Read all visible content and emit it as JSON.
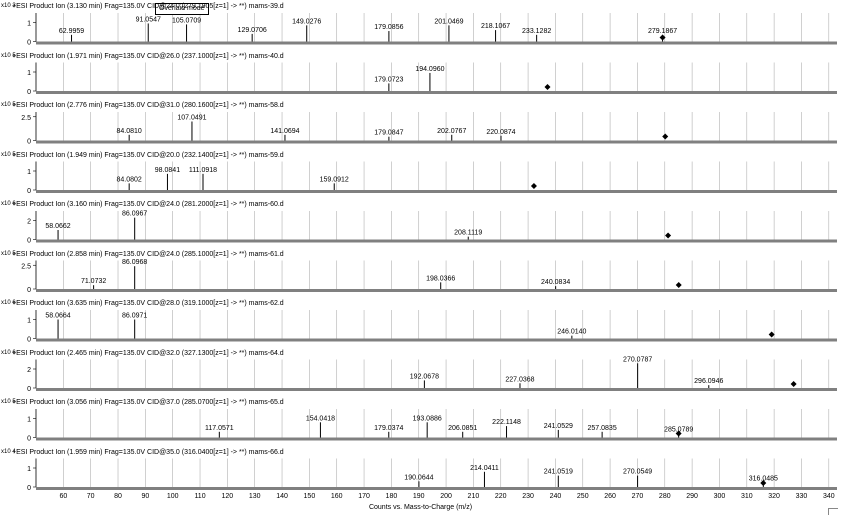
{
  "overlaid_mode_label": "Overlaid mode",
  "chart_data": [
    {
      "type": "bar",
      "header": "+ESI Product Ion (3.130 min) Frag=135.0V CID@24.0 (279.1905[z=1] -> **) mams-39.d",
      "scale": "x10 3",
      "yticks": [
        "1",
        "0"
      ],
      "ymax": 1.5,
      "peaks": [
        {
          "mz": 62.9959,
          "y": 0.35,
          "label": "62.9959"
        },
        {
          "mz": 91.0547,
          "y": 0.95,
          "label": "91.0547"
        },
        {
          "mz": 105.0709,
          "y": 0.9,
          "label": "105.0709"
        },
        {
          "mz": 129.0706,
          "y": 0.4,
          "label": "129.0706"
        },
        {
          "mz": 149.0276,
          "y": 0.85,
          "label": "149.0276"
        },
        {
          "mz": 179.0856,
          "y": 0.55,
          "label": "179.0856"
        },
        {
          "mz": 201.0469,
          "y": 0.85,
          "label": "201.0469"
        },
        {
          "mz": 218.1067,
          "y": 0.6,
          "label": "218.1067"
        },
        {
          "mz": 233.1282,
          "y": 0.35,
          "label": "233.1282"
        },
        {
          "mz": 279.1867,
          "y": 0.35,
          "label": "279.1867"
        }
      ],
      "precursor_mz": 279.19
    },
    {
      "type": "bar",
      "header": "+ESI Product Ion (1.971 min) Frag=135.0V CID@26.0 (237.1000[z=1] -> **) mams-40.d",
      "scale": "x10 5",
      "yticks": [
        "1",
        "0"
      ],
      "ymax": 1.5,
      "peaks": [
        {
          "mz": 179.0723,
          "y": 0.4,
          "label": "179.0723"
        },
        {
          "mz": 194.096,
          "y": 0.95,
          "label": "194.0960"
        }
      ],
      "precursor_mz": 237.1
    },
    {
      "type": "bar",
      "header": "+ESI Product Ion (2.776 min) Frag=135.0V CID@31.0 (280.1600[z=1] -> **) mams-58.d",
      "scale": "x10 5",
      "yticks": [
        "2.5",
        "0"
      ],
      "ymax": 3,
      "peaks": [
        {
          "mz": 84.081,
          "y": 0.6,
          "label": "84.0810"
        },
        {
          "mz": 107.0491,
          "y": 2.0,
          "label": "107.0491"
        },
        {
          "mz": 141.0694,
          "y": 0.6,
          "label": "141.0694"
        },
        {
          "mz": 179.0847,
          "y": 0.4,
          "label": "179.0847"
        },
        {
          "mz": 202.0767,
          "y": 0.6,
          "label": "202.0767"
        },
        {
          "mz": 220.0874,
          "y": 0.5,
          "label": "220.0874"
        }
      ],
      "precursor_mz": 280.16
    },
    {
      "type": "bar",
      "header": "+ESI Product Ion (1.949 min) Frag=135.0V CID@20.0 (232.1400[z=1] -> **) mams-59.d",
      "scale": "x10 5",
      "yticks": [
        "1",
        "0"
      ],
      "ymax": 1.5,
      "peaks": [
        {
          "mz": 84.0802,
          "y": 0.35,
          "label": "84.0802"
        },
        {
          "mz": 98.0841,
          "y": 0.85,
          "label": "98.0841"
        },
        {
          "mz": 111.0918,
          "y": 0.85,
          "label": "111.0918"
        },
        {
          "mz": 159.0912,
          "y": 0.35,
          "label": "159.0912"
        }
      ],
      "precursor_mz": 232.14
    },
    {
      "type": "bar",
      "header": "+ESI Product Ion (3.160 min) Frag=135.0V CID@24.0 (281.2000[z=1] -> **) mams-60.d",
      "scale": "x10 6",
      "yticks": [
        "2",
        "0"
      ],
      "ymax": 3,
      "peaks": [
        {
          "mz": 58.0662,
          "y": 1.0,
          "label": "58.0662"
        },
        {
          "mz": 86.0967,
          "y": 2.3,
          "label": "86.0967"
        },
        {
          "mz": 208.1119,
          "y": 0.3,
          "label": "208.1119"
        }
      ],
      "precursor_mz": 281.2
    },
    {
      "type": "bar",
      "header": "+ESI Product Ion (2.858 min) Frag=135.0V CID@24.0 (285.1000[z=1] -> **) mams-61.d",
      "scale": "x10 5",
      "yticks": [
        "2.5",
        "0"
      ],
      "ymax": 3,
      "peaks": [
        {
          "mz": 71.0732,
          "y": 0.4,
          "label": "71.0732"
        },
        {
          "mz": 86.0968,
          "y": 2.4,
          "label": "86.0968"
        },
        {
          "mz": 198.0366,
          "y": 0.7,
          "label": "198.0366"
        },
        {
          "mz": 240.0834,
          "y": 0.3,
          "label": "240.0834"
        }
      ],
      "precursor_mz": 285.1
    },
    {
      "type": "bar",
      "header": "+ESI Product Ion (3.635 min) Frag=135.0V CID@28.0 (319.1000[z=1] -> **) mams-62.d",
      "scale": "x10 6",
      "yticks": [
        "1",
        "0"
      ],
      "ymax": 1.5,
      "peaks": [
        {
          "mz": 58.0664,
          "y": 1.0,
          "label": "58.0664"
        },
        {
          "mz": 86.0971,
          "y": 1.0,
          "label": "86.0971"
        },
        {
          "mz": 246.014,
          "y": 0.15,
          "label": "246.0140"
        }
      ],
      "precursor_mz": 319.1
    },
    {
      "type": "bar",
      "header": "+ESI Product Ion (2.465 min) Frag=135.0V CID@32.0 (327.1300[z=1] -> **) mams-64.d",
      "scale": "x10 6",
      "yticks": [
        "2",
        "0"
      ],
      "ymax": 3,
      "peaks": [
        {
          "mz": 192.0678,
          "y": 0.8,
          "label": "192.0678"
        },
        {
          "mz": 227.0368,
          "y": 0.5,
          "label": "227.0368"
        },
        {
          "mz": 270.0787,
          "y": 2.6,
          "label": "270.0787"
        },
        {
          "mz": 296.0946,
          "y": 0.3,
          "label": "296.0946"
        }
      ],
      "precursor_mz": 327.13
    },
    {
      "type": "bar",
      "header": "+ESI Product Ion (3.056 min) Frag=135.0V CID@37.0 (285.0700[z=1] -> **) mams-65.d",
      "scale": "x10 5",
      "yticks": [
        "1",
        "0"
      ],
      "ymax": 1.5,
      "peaks": [
        {
          "mz": 117.0571,
          "y": 0.3,
          "label": "117.0571"
        },
        {
          "mz": 154.0418,
          "y": 0.8,
          "label": "154.0418"
        },
        {
          "mz": 179.0374,
          "y": 0.3,
          "label": "179.0374"
        },
        {
          "mz": 193.0886,
          "y": 0.8,
          "label": "193.0886"
        },
        {
          "mz": 206.0851,
          "y": 0.3,
          "label": "206.0851"
        },
        {
          "mz": 222.1148,
          "y": 0.6,
          "label": "222.1148"
        },
        {
          "mz": 241.0529,
          "y": 0.4,
          "label": "241.0529"
        },
        {
          "mz": 257.0835,
          "y": 0.3,
          "label": "257.0835"
        },
        {
          "mz": 285.0789,
          "y": 0.2,
          "label": "285.0789"
        }
      ],
      "precursor_mz": 285.07
    },
    {
      "type": "bar",
      "header": "+ESI Product Ion (1.959 min) Frag=135.0V CID@35.0 (316.0400[z=1] -> **) mams-66.d",
      "scale": "x10 4",
      "yticks": [
        "1",
        "0"
      ],
      "ymax": 1.5,
      "peaks": [
        {
          "mz": 190.0644,
          "y": 0.3,
          "label": "190.0644"
        },
        {
          "mz": 214.0411,
          "y": 0.8,
          "label": "214.0411"
        },
        {
          "mz": 241.0519,
          "y": 0.6,
          "label": "241.0519"
        },
        {
          "mz": 270.0549,
          "y": 0.6,
          "label": "270.0549"
        },
        {
          "mz": 316.0485,
          "y": 0.25,
          "label": "316.0485"
        }
      ],
      "precursor_mz": 316.04,
      "x_ticks": [
        "60",
        "70",
        "80",
        "90",
        "100",
        "110",
        "120",
        "130",
        "140",
        "150",
        "160",
        "170",
        "180",
        "190",
        "200",
        "210",
        "220",
        "230",
        "240",
        "250",
        "260",
        "270",
        "280",
        "290",
        "300",
        "310",
        "320",
        "330",
        "340"
      ]
    }
  ],
  "x_axis_label": "Counts vs. Mass-to-Charge (m/z)",
  "colors": {
    "bar": "#000000",
    "grid": "#b0b0b0",
    "axis": "#808080",
    "precursor": "#000000"
  }
}
